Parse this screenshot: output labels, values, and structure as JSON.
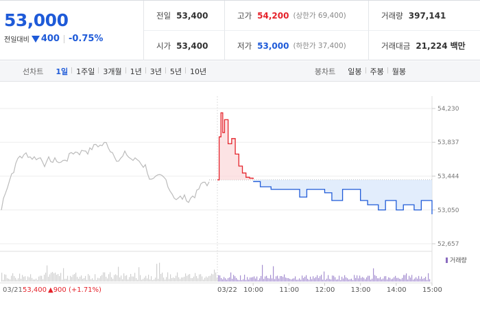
{
  "quote": {
    "price": "53,000",
    "change_label": "전일대비",
    "change_value": "400",
    "change_rate": "-0.75%"
  },
  "stats": {
    "prev": {
      "label": "전일",
      "value": "53,400"
    },
    "high": {
      "label": "고가",
      "value": "54,200",
      "sub": "(상한가 69,400)"
    },
    "volume": {
      "label": "거래량",
      "value": "397,141"
    },
    "open": {
      "label": "시가",
      "value": "53,400"
    },
    "low": {
      "label": "저가",
      "value": "53,000",
      "sub": "(하한가 37,400)"
    },
    "amount": {
      "label": "거래대금",
      "value": "21,224",
      "unit": "백만"
    }
  },
  "toolbar": {
    "line_label": "선차트",
    "periods": [
      "1일",
      "1주일",
      "3개월",
      "1년",
      "3년",
      "5년",
      "10년"
    ],
    "active_period": "1일",
    "candle_label": "봉차트",
    "candles": [
      "일봉",
      "주봉",
      "월봉"
    ]
  },
  "colors": {
    "up": "#e5222a",
    "down": "#1e5ad8",
    "prev": "#bbbbbb"
  },
  "chart_data": {
    "type": "line",
    "y_ticks": [
      "54,230",
      "53,837",
      "53,444",
      "53,050",
      "52,657"
    ],
    "ylim": [
      52657,
      54230
    ],
    "base_price": 53400,
    "x_ticks": [
      "03/22",
      "10:00",
      "11:00",
      "12:00",
      "13:00",
      "14:00",
      "15:00"
    ],
    "prev_day": {
      "date": "03/21",
      "close": "53,400",
      "change": "▲900",
      "rate": "(+1.71%)"
    },
    "legend": "거래량",
    "series": [
      {
        "x": [
          0,
          0.05,
          0.1,
          0.15,
          0.2,
          0.3,
          0.4,
          0.5,
          0.6,
          0.7,
          0.8,
          0.9,
          1.0
        ],
        "values": [
          53400,
          53900,
          54180,
          53950,
          54100,
          53820,
          53880,
          53700,
          53560,
          53480,
          53430,
          53420,
          53410
        ]
      },
      {
        "x": [
          1.0,
          1.2,
          1.5,
          2.0,
          2.3,
          2.5,
          3.0,
          3.2,
          3.5,
          4.0,
          4.2,
          4.5,
          4.7,
          5.0,
          5.2,
          5.5,
          5.7,
          6.0
        ],
        "values": [
          53380,
          53320,
          53290,
          53290,
          53200,
          53290,
          53250,
          53160,
          53290,
          53160,
          53110,
          53050,
          53160,
          53050,
          53110,
          53050,
          53160,
          53000
        ]
      }
    ]
  }
}
